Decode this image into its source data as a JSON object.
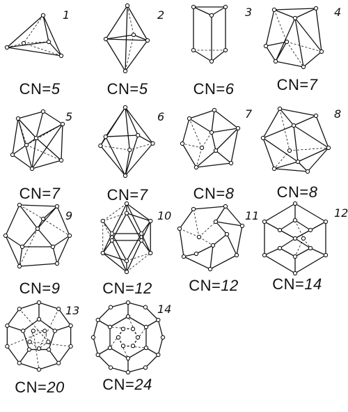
{
  "items": [
    {
      "number": "1",
      "cn_prefix": "CN=",
      "cn_value": "5"
    },
    {
      "number": "2",
      "cn_prefix": "CN=",
      "cn_value": "5"
    },
    {
      "number": "3",
      "cn_prefix": "CN=",
      "cn_value": "6"
    },
    {
      "number": "4",
      "cn_prefix": "CN=",
      "cn_value": "7"
    },
    {
      "number": "5",
      "cn_prefix": "CN=",
      "cn_value": "7"
    },
    {
      "number": "6",
      "cn_prefix": "CN=",
      "cn_value": "7"
    },
    {
      "number": "7",
      "cn_prefix": "CN=",
      "cn_value": "8"
    },
    {
      "number": "8",
      "cn_prefix": "CN=",
      "cn_value": "8"
    },
    {
      "number": "9",
      "cn_prefix": "CN=",
      "cn_value": "9"
    },
    {
      "number": "10",
      "cn_prefix": "CN=",
      "cn_value": "12"
    },
    {
      "number": "11",
      "cn_prefix": "CN=",
      "cn_value": "12"
    },
    {
      "number": "12",
      "cn_prefix": "CN=",
      "cn_value": "14"
    },
    {
      "number": "13",
      "cn_prefix": "CN=",
      "cn_value": "20"
    },
    {
      "number": "14",
      "cn_prefix": "CN=",
      "cn_value": "24"
    }
  ]
}
